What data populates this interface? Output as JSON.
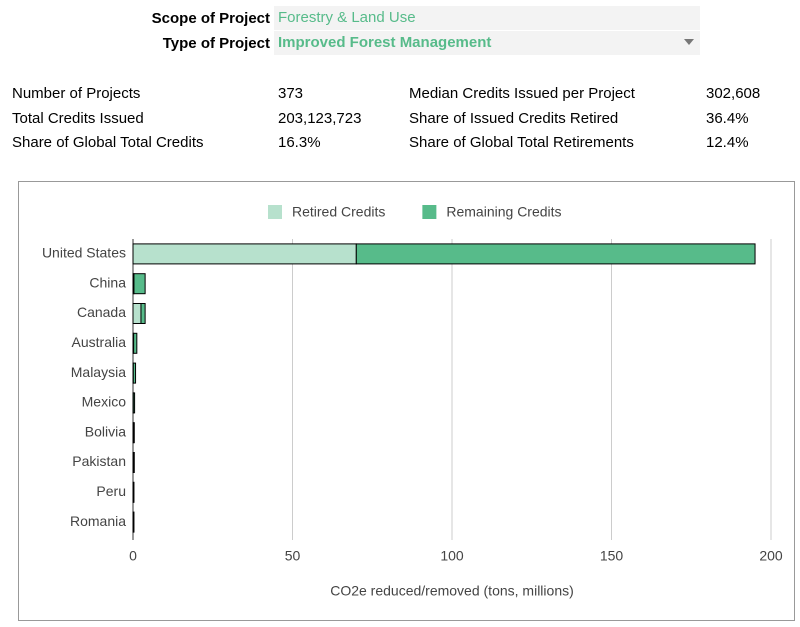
{
  "filters": [
    {
      "label": "Scope of Project",
      "value": "Forestry & Land Use"
    },
    {
      "label": "Type of Project",
      "value": "Improved Forest Management"
    }
  ],
  "stats": [
    [
      "Number of Projects",
      "373",
      "Median Credits Issued per Project",
      "302,608"
    ],
    [
      "Total Credits Issued",
      "203,123,723",
      "Share of Issued Credits Retired",
      "36.4%"
    ],
    [
      "Share of Global Total Credits",
      "16.3%",
      "Share of Global Total Retirements",
      "12.4%"
    ]
  ],
  "chart_data": {
    "type": "bar",
    "orientation": "horizontal",
    "stacked": true,
    "categories": [
      "United States",
      "China",
      "Canada",
      "Australia",
      "Malaysia",
      "Mexico",
      "Bolivia",
      "Pakistan",
      "Peru",
      "Romania"
    ],
    "series": [
      {
        "name": "Retired Credits",
        "color": "#b7e1cd",
        "values": [
          70,
          0.3,
          2.5,
          0.2,
          0.1,
          0.1,
          0.1,
          0.1,
          0.05,
          0.05
        ]
      },
      {
        "name": "Remaining Credits",
        "color": "#57bb8a",
        "values": [
          125,
          3.5,
          1.3,
          1.0,
          0.7,
          0.4,
          0.3,
          0.3,
          0.25,
          0.25
        ]
      }
    ],
    "xlim": [
      0,
      200
    ],
    "xticks": [
      0,
      50,
      100,
      150,
      200
    ],
    "xlabel": "CO2e reduced/removed (tons, millions)",
    "grid": true,
    "legend": "top"
  }
}
